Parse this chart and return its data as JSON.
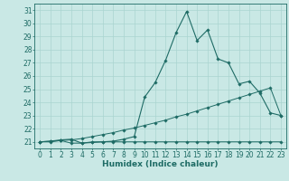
{
  "background_color": "#c9e8e5",
  "grid_color": "#aad4d0",
  "line_color": "#1e6b65",
  "xlabel": "Humidex (Indice chaleur)",
  "xlabel_fontsize": 6.5,
  "tick_fontsize": 5.5,
  "xlim": [
    -0.5,
    23.5
  ],
  "ylim": [
    20.5,
    31.5
  ],
  "yticks": [
    21,
    22,
    23,
    24,
    25,
    26,
    27,
    28,
    29,
    30,
    31
  ],
  "xticks": [
    0,
    1,
    2,
    3,
    4,
    5,
    6,
    7,
    8,
    9,
    10,
    11,
    12,
    13,
    14,
    15,
    16,
    17,
    18,
    19,
    20,
    21,
    22,
    23
  ],
  "line1_x": [
    0,
    1,
    2,
    3,
    4,
    5,
    6,
    7,
    8,
    9,
    10,
    11,
    12,
    13,
    14,
    15,
    16,
    17,
    18,
    19,
    20,
    21,
    22,
    23
  ],
  "line1_y": [
    21.0,
    21.0,
    21.1,
    20.9,
    20.9,
    21.0,
    21.0,
    21.0,
    21.0,
    21.0,
    21.0,
    21.0,
    21.0,
    21.0,
    21.0,
    21.0,
    21.0,
    21.0,
    21.0,
    21.0,
    21.0,
    21.0,
    21.0,
    21.0
  ],
  "line2_x": [
    0,
    1,
    2,
    3,
    4,
    5,
    6,
    7,
    8,
    9,
    10,
    11,
    12,
    13,
    14,
    15,
    16,
    17,
    18,
    19,
    20,
    21,
    22,
    23
  ],
  "line2_y": [
    21.0,
    21.05,
    21.1,
    21.15,
    21.25,
    21.4,
    21.55,
    21.7,
    21.9,
    22.05,
    22.25,
    22.45,
    22.65,
    22.9,
    23.1,
    23.35,
    23.6,
    23.85,
    24.1,
    24.35,
    24.6,
    24.85,
    25.1,
    23.0
  ],
  "line3_x": [
    0,
    1,
    2,
    3,
    4,
    5,
    6,
    7,
    8,
    9,
    10,
    11,
    12,
    13,
    14,
    15,
    16,
    17,
    18,
    19,
    20,
    21,
    22,
    23
  ],
  "line3_y": [
    21.0,
    21.05,
    21.15,
    21.2,
    20.9,
    20.95,
    21.0,
    21.05,
    21.2,
    21.4,
    24.4,
    25.5,
    27.2,
    29.3,
    30.9,
    28.7,
    29.5,
    27.3,
    27.0,
    25.4,
    25.6,
    24.7,
    23.2,
    23.0
  ]
}
